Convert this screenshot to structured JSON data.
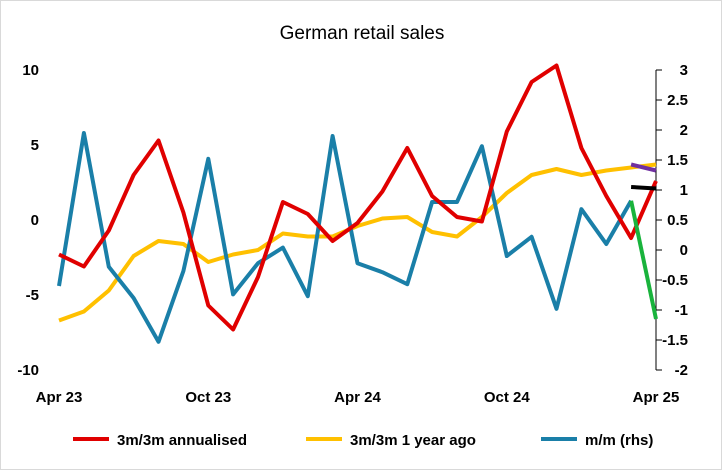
{
  "chart_data": {
    "type": "line",
    "title": "German retail sales",
    "x": [
      "Apr 23",
      "May 23",
      "Jun 23",
      "Jul 23",
      "Aug 23",
      "Sep 23",
      "Oct 23",
      "Nov 23",
      "Dec 23",
      "Jan 24",
      "Feb 24",
      "Mar 24",
      "Apr 24",
      "May 24",
      "Jun 24",
      "Jul 24",
      "Aug 24",
      "Sep 24",
      "Oct 24",
      "Nov 24",
      "Dec 24",
      "Jan 25",
      "Feb 25",
      "Mar 25",
      "Apr 25"
    ],
    "x_tick_labels": [
      "Apr 23",
      "Oct 23",
      "Apr 24",
      "Oct 24",
      "Apr 25"
    ],
    "y_left": {
      "ylim": [
        -10,
        10
      ],
      "ticks": [
        -10,
        -5,
        0,
        5,
        10
      ]
    },
    "y_right": {
      "ylim": [
        -2,
        3
      ],
      "ticks": [
        -2,
        -1.5,
        -1,
        -0.5,
        0,
        0.5,
        1,
        1.5,
        2,
        2.5,
        3
      ]
    },
    "series": [
      {
        "name": "3m/3m annualised",
        "axis": "left",
        "color": "#e00000",
        "values": [
          -2.3,
          -3.1,
          -0.7,
          3.0,
          5.3,
          0.5,
          -5.7,
          -7.3,
          -3.8,
          1.2,
          0.4,
          -1.4,
          -0.2,
          1.9,
          4.8,
          1.6,
          0.2,
          -0.1,
          5.9,
          9.2,
          10.3,
          4.8,
          1.6,
          -1.2,
          2.6
        ]
      },
      {
        "name": "3m/3m 1 year ago",
        "axis": "left",
        "color": "#ffc000",
        "values": [
          -6.7,
          -6.1,
          -4.7,
          -2.4,
          -1.4,
          -1.6,
          -2.8,
          -2.3,
          -2.0,
          -0.9,
          -1.1,
          -1.1,
          -0.4,
          0.1,
          0.2,
          -0.8,
          -1.1,
          0.2,
          1.8,
          3.0,
          3.4,
          3.0,
          3.3,
          3.5,
          3.7
        ]
      },
      {
        "name": "m/m (rhs)",
        "axis": "right",
        "color": "#1a7fa8",
        "values": [
          -0.6,
          1.95,
          -0.28,
          -0.8,
          -1.53,
          -0.35,
          1.52,
          -0.74,
          -0.22,
          0.04,
          -0.77,
          1.9,
          -0.22,
          -0.37,
          -0.57,
          0.8,
          0.8,
          1.73,
          -0.1,
          0.22,
          -0.98,
          0.68,
          0.1,
          0.82,
          null
        ]
      }
    ],
    "forecast_segments": [
      {
        "axis": "left",
        "color": "#7030a0",
        "x": [
          "Mar 25",
          "Apr 25"
        ],
        "values": [
          3.7,
          3.3
        ]
      },
      {
        "axis": "left",
        "color": "#000000",
        "x": [
          "Mar 25",
          "Apr 25"
        ],
        "values": [
          2.2,
          2.1
        ]
      },
      {
        "axis": "right",
        "color": "#19b33c",
        "x": [
          "Mar 25",
          "Apr 25"
        ],
        "values": [
          0.82,
          -1.15
        ]
      }
    ],
    "legend": {
      "position": "bottom",
      "entries": [
        {
          "label": "3m/3m annualised",
          "color": "#e00000"
        },
        {
          "label": "3m/3m 1 year ago",
          "color": "#ffc000"
        },
        {
          "label": "m/m (rhs)",
          "color": "#1a7fa8"
        }
      ]
    },
    "grid": false
  }
}
